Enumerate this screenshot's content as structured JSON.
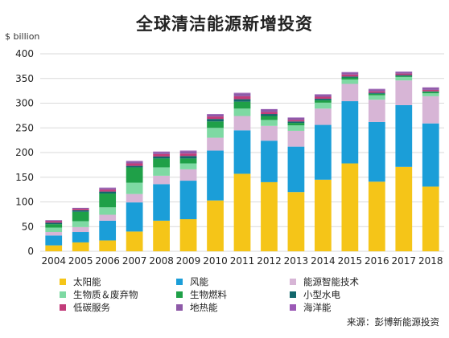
{
  "title": "全球清洁能源新增投资",
  "source": "来源：彭博新能源投资",
  "chart_data": {
    "type": "bar",
    "stacked": true,
    "title": "全球清洁能源新增投资",
    "ylabel": "$ billion",
    "ylim": [
      0,
      400
    ],
    "yticks": [
      0,
      50,
      100,
      150,
      200,
      250,
      300,
      350,
      400
    ],
    "grid": true,
    "legend_position": "bottom",
    "categories": [
      "2004",
      "2005",
      "2006",
      "2007",
      "2008",
      "2009",
      "2010",
      "2011",
      "2012",
      "2013",
      "2014",
      "2015",
      "2016",
      "2017",
      "2018"
    ],
    "series": [
      {
        "name": "太阳能",
        "color": "#F5C518",
        "values": [
          12,
          18,
          22,
          40,
          62,
          65,
          103,
          157,
          140,
          120,
          145,
          178,
          141,
          171,
          131
        ]
      },
      {
        "name": "风能",
        "color": "#1B9ED8",
        "values": [
          20,
          21,
          40,
          59,
          74,
          78,
          101,
          88,
          84,
          92,
          111,
          126,
          121,
          125,
          128
        ]
      },
      {
        "name": "能源智能技术",
        "color": "#D7B5D6",
        "values": [
          7,
          10,
          12,
          17,
          17,
          23,
          26,
          29,
          30,
          32,
          33,
          35,
          45,
          50,
          55
        ]
      },
      {
        "name": "生物质＆废弃物",
        "color": "#7ED9A3",
        "values": [
          9,
          12,
          15,
          23,
          17,
          12,
          20,
          15,
          12,
          11,
          12,
          9,
          9,
          7,
          6
        ]
      },
      {
        "name": "生物燃料",
        "color": "#1FA048",
        "values": [
          7,
          19,
          28,
          31,
          18,
          10,
          13,
          14,
          8,
          5,
          5,
          4,
          3,
          2,
          3
        ]
      },
      {
        "name": "小型水电",
        "color": "#12676B",
        "values": [
          3,
          3,
          4,
          3,
          4,
          5,
          5,
          5,
          4,
          3,
          3,
          2,
          2,
          2,
          1
        ]
      },
      {
        "name": "低碳服务",
        "color": "#C23C7A",
        "values": [
          3,
          3,
          4,
          5,
          5,
          5,
          5,
          6,
          4,
          3,
          4,
          4,
          3,
          3,
          3
        ]
      },
      {
        "name": "地热能",
        "color": "#8E5AA8",
        "values": [
          2,
          2,
          3,
          4,
          4,
          5,
          4,
          6,
          5,
          4,
          4,
          4,
          4,
          3,
          4
        ]
      },
      {
        "name": "海洋能",
        "color": "#9B59B6",
        "values": [
          0,
          0,
          1,
          1,
          1,
          1,
          1,
          1,
          1,
          1,
          1,
          1,
          1,
          1,
          1
        ]
      }
    ]
  },
  "legend": [
    {
      "label": "太阳能",
      "color": "#F5C518"
    },
    {
      "label": "风能",
      "color": "#1B9ED8"
    },
    {
      "label": "能源智能技术",
      "color": "#D7B5D6"
    },
    {
      "label": "生物质＆废弃物",
      "color": "#7ED9A3"
    },
    {
      "label": "生物燃料",
      "color": "#1FA048"
    },
    {
      "label": "小型水电",
      "color": "#12676B"
    },
    {
      "label": "低碳服务",
      "color": "#C23C7A"
    },
    {
      "label": "地热能",
      "color": "#8E5AA8"
    },
    {
      "label": "海洋能",
      "color": "#9B59B6"
    }
  ]
}
